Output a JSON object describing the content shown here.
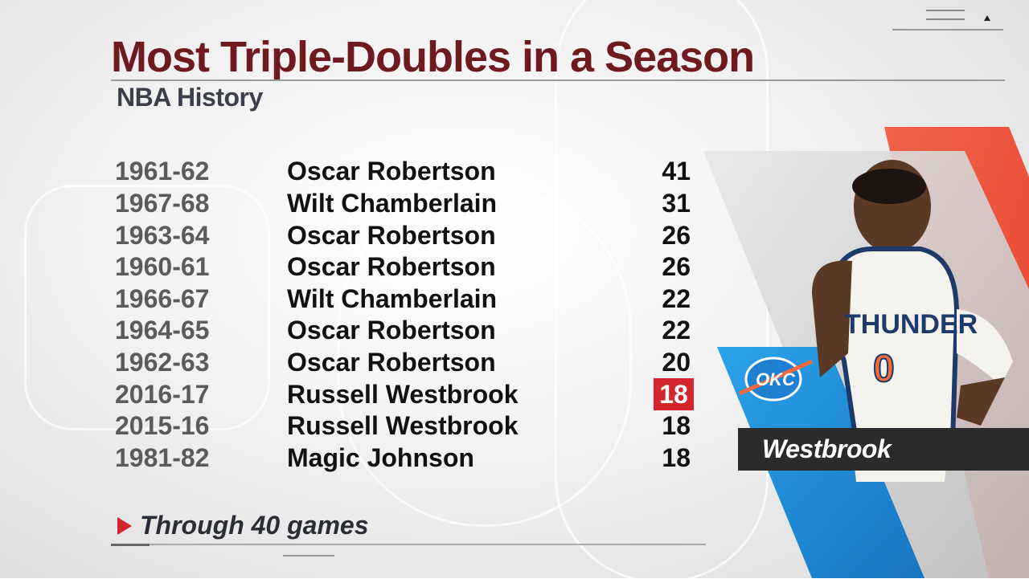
{
  "header": {
    "title": "Most Triple-Doubles in a Season",
    "subtitle": "NBA History"
  },
  "rows": [
    {
      "season": "1961-62",
      "player": "Oscar Robertson",
      "count": "41"
    },
    {
      "season": "1967-68",
      "player": "Wilt Chamberlain",
      "count": "31"
    },
    {
      "season": "1963-64",
      "player": "Oscar Robertson",
      "count": "26"
    },
    {
      "season": "1960-61",
      "player": "Oscar Robertson",
      "count": "26"
    },
    {
      "season": "1966-67",
      "player": "Wilt Chamberlain",
      "count": "22"
    },
    {
      "season": "1964-65",
      "player": "Oscar Robertson",
      "count": "22"
    },
    {
      "season": "1962-63",
      "player": "Oscar Robertson",
      "count": "20"
    },
    {
      "season": "2016-17",
      "player": "Russell Westbrook",
      "count": "18",
      "highlighted": true
    },
    {
      "season": "2015-16",
      "player": "Russell Westbrook",
      "count": "18"
    },
    {
      "season": "1981-82",
      "player": "Magic Johnson",
      "count": "18"
    }
  ],
  "footnote": "Through 40 games",
  "player_panel": {
    "name": "Westbrook",
    "team_logo_text": "OKC",
    "jersey_text": "THUNDER",
    "jersey_number": "0"
  },
  "colors": {
    "title": "#6e1a1f",
    "highlight": "#d3252b",
    "team_blue": "#1f8fd8",
    "team_orange": "#ef5b3c",
    "plate": "#2b2b2b"
  }
}
